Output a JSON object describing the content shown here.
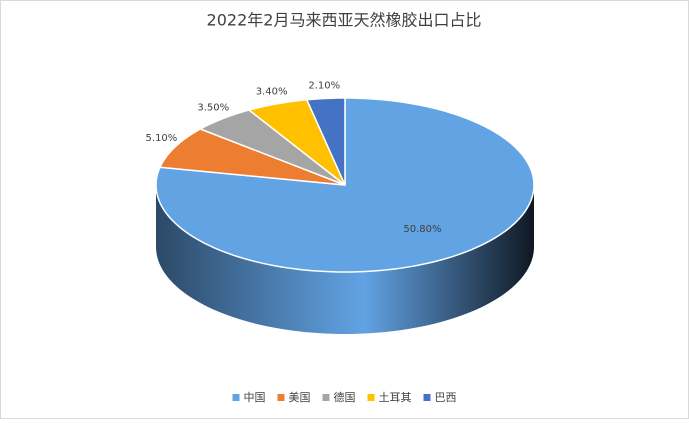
{
  "chart_data": {
    "type": "pie3d",
    "title": "2022年2月马来西亚天然橡胶出口占比",
    "categories": [
      "中国",
      "美国",
      "德国",
      "土耳其",
      "巴西"
    ],
    "values": [
      50.8,
      5.1,
      3.5,
      3.4,
      2.1
    ],
    "value_labels": [
      "50.80%",
      "5.10%",
      "3.50%",
      "3.40%",
      "2.10%"
    ],
    "colors": [
      "#62a3e4",
      "#ed7d31",
      "#a5a5a5",
      "#ffc000",
      "#4472c4"
    ],
    "legend": "bottom"
  }
}
